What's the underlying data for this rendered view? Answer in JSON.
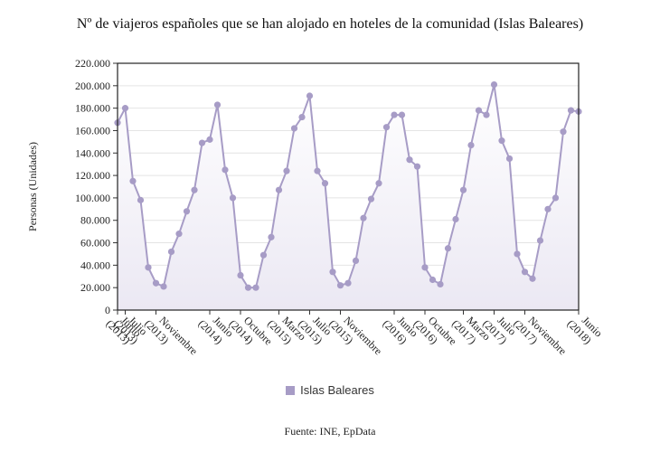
{
  "chart_data": {
    "type": "area",
    "title": "Nº de viajeros españoles que se han alojado en hoteles de la comunidad (Islas Baleares)",
    "ylabel": "Personas (Unidades)",
    "xlabel": "",
    "ylim": [
      0,
      220000
    ],
    "yticks": [
      "0",
      "20.000",
      "40.000",
      "60.000",
      "80.000",
      "100.000",
      "120.000",
      "140.000",
      "160.000",
      "180.000",
      "200.000",
      "220.000"
    ],
    "xticks": [
      {
        "i": 0,
        "label": "Junio (2013)"
      },
      {
        "i": 1,
        "label": "Julio (2013)"
      },
      {
        "i": 5,
        "label": "Noviembre (2013)"
      },
      {
        "i": 12,
        "label": "Junio (2014)"
      },
      {
        "i": 16,
        "label": "Octubre (2014)"
      },
      {
        "i": 21,
        "label": "Marzo (2015)"
      },
      {
        "i": 25,
        "label": "Julio (2015)"
      },
      {
        "i": 29,
        "label": "Noviembre (2015)"
      },
      {
        "i": 36,
        "label": "Junio (2016)"
      },
      {
        "i": 40,
        "label": "Octubre (2016)"
      },
      {
        "i": 45,
        "label": "Marzo (2017)"
      },
      {
        "i": 49,
        "label": "Julio (2017)"
      },
      {
        "i": 53,
        "label": "Noviembre (2017)"
      },
      {
        "i": 60,
        "label": "Junio (2018)"
      }
    ],
    "grid": true,
    "legend": "bottom",
    "series": [
      {
        "name": "Islas Baleares",
        "color": "#a79cc6",
        "values": [
          167000,
          180000,
          115000,
          98000,
          38000,
          24000,
          21000,
          52000,
          68000,
          88000,
          107000,
          149000,
          152000,
          183000,
          125000,
          100000,
          31000,
          20000,
          20000,
          49000,
          65000,
          107000,
          124000,
          162000,
          172000,
          191000,
          124000,
          113000,
          34000,
          22000,
          24000,
          44000,
          82000,
          99000,
          113000,
          163000,
          174000,
          174000,
          134000,
          128000,
          38000,
          27000,
          23000,
          55000,
          81000,
          107000,
          147000,
          178000,
          174000,
          201000,
          151000,
          135000,
          50000,
          34000,
          28000,
          62000,
          90000,
          100000,
          159000,
          178000,
          177000
        ]
      }
    ]
  },
  "source": "Fuente: INE, EpData"
}
